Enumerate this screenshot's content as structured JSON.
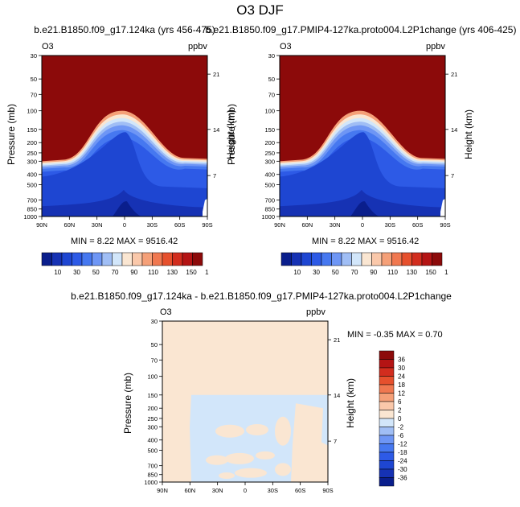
{
  "figure_title": "O3 DJF",
  "panel_common": {
    "variable": "O3",
    "units": "ppbv",
    "ylabel_left": "Pressure (mb)",
    "ylabel_right": "Height (km)",
    "pressure_ticks": [
      "30",
      "50",
      "70",
      "100",
      "150",
      "200",
      "250",
      "300",
      "400",
      "500",
      "700",
      "850",
      "1000"
    ],
    "height_ticks": [
      "21",
      "14",
      "7"
    ],
    "lat_ticks": [
      "90N",
      "60N",
      "30N",
      "0",
      "30S",
      "60S",
      "90S"
    ]
  },
  "panels": [
    {
      "title": "b.e21.B1850.f09_g17.124ka (yrs 456-475)",
      "stats": "MIN =   8.22  MAX = 9516.42"
    },
    {
      "title": "b.e21.B1850.f09_g17.PMIP4-127ka.proto004.L2P1change (yrs 406-425)",
      "stats": "MIN =   8.22  MAX = 9516.42"
    },
    {
      "title": "b.e21.B1850.f09_g17.124ka - b.e21.B1850.f09_g17.PMIP4-127ka.proto004.L2P1change",
      "stats": "MIN =  -0.35   MAX =   0.70"
    }
  ],
  "colorbar_abs": {
    "labels": [
      "10",
      "30",
      "50",
      "70",
      "90",
      "110",
      "130",
      "150",
      "160"
    ],
    "colors": [
      "#0a1e8c",
      "#1632b4",
      "#1e46d2",
      "#2d5ae6",
      "#4678f0",
      "#6e96f5",
      "#a0bef5",
      "#d2e6fa",
      "#fae6d2",
      "#fac8aa",
      "#f5a078",
      "#f07850",
      "#e6502d",
      "#d22d1e",
      "#b41414",
      "#8c0a0a"
    ]
  },
  "colorbar_diff": {
    "labels": [
      "36",
      "30",
      "24",
      "18",
      "12",
      "6",
      "2",
      "0",
      "-2",
      "-6",
      "-12",
      "-18",
      "-24",
      "-30",
      "-36"
    ],
    "colors": [
      "#8c0a0a",
      "#b41414",
      "#d22d1e",
      "#e6502d",
      "#f07850",
      "#f5a078",
      "#fac8aa",
      "#fae6d2",
      "#d2e6fa",
      "#a0bef5",
      "#6e96f5",
      "#4678f0",
      "#2d5ae6",
      "#1e46d2",
      "#1632b4",
      "#0a1e8c"
    ]
  },
  "chart_data": [
    {
      "type": "heatmap",
      "title": "b.e21.B1850.f09_g17.124ka (yrs 456-475)",
      "xlabel": "",
      "ylabel": "Pressure (mb)",
      "y2label": "Height (km)",
      "xlim": [
        "90N",
        "90S"
      ],
      "ylim": [
        1000,
        30
      ],
      "y_scale": "log",
      "min": 8.22,
      "max": 9516.42,
      "units": "ppbv"
    },
    {
      "type": "heatmap",
      "title": "b.e21.B1850.f09_g17.PMIP4-127ka.proto004.L2P1change (yrs 406-425)",
      "xlabel": "",
      "ylabel": "Pressure (mb)",
      "y2label": "Height (km)",
      "xlim": [
        "90N",
        "90S"
      ],
      "ylim": [
        1000,
        30
      ],
      "y_scale": "log",
      "min": 8.22,
      "max": 9516.42,
      "units": "ppbv"
    },
    {
      "type": "heatmap",
      "title": "b.e21.B1850.f09_g17.124ka - b.e21.B1850.f09_g17.PMIP4-127ka.proto004.L2P1change",
      "xlabel": "",
      "ylabel": "Pressure (mb)",
      "y2label": "Height (km)",
      "xlim": [
        "90N",
        "90S"
      ],
      "ylim": [
        1000,
        30
      ],
      "y_scale": "log",
      "min": -0.35,
      "max": 0.7,
      "units": "ppbv"
    }
  ]
}
